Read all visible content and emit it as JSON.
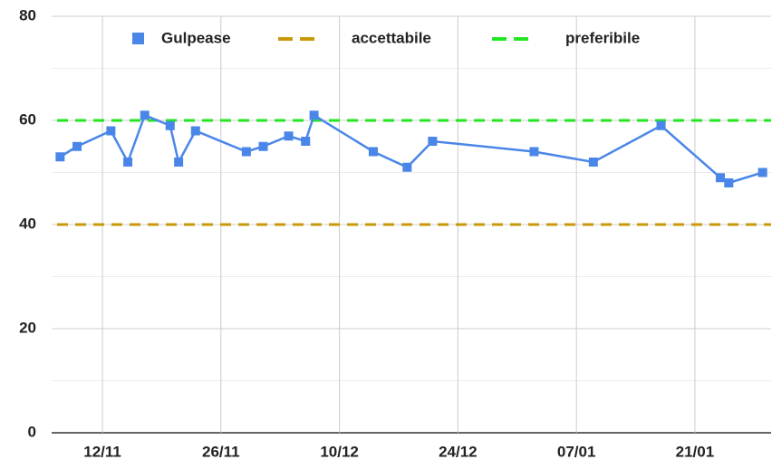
{
  "chart_data": {
    "type": "line",
    "x": [
      "07/11",
      "09/11",
      "13/11",
      "15/11",
      "17/11",
      "20/11",
      "21/11",
      "23/11",
      "29/11",
      "01/12",
      "04/12",
      "06/12",
      "07/12",
      "14/12",
      "18/12",
      "21/12",
      "02/01",
      "09/01",
      "17/01",
      "24/01",
      "25/01",
      "29/01"
    ],
    "series": [
      {
        "name": "Gulpease",
        "color": "#4a86e8",
        "values": [
          53,
          55,
          58,
          52,
          61,
          59,
          52,
          58,
          54,
          55,
          57,
          56,
          61,
          54,
          51,
          56,
          54,
          52,
          59,
          49,
          48,
          50
        ]
      }
    ],
    "reference_lines": [
      {
        "name": "accettabile",
        "color": "#c89a0a",
        "value": 40
      },
      {
        "name": "preferibile",
        "color": "#22e622",
        "value": 60
      }
    ],
    "xlim": [
      "06/11",
      "30/01"
    ],
    "xticks": [
      "12/11",
      "26/11",
      "10/12",
      "24/12",
      "07/01",
      "21/01"
    ],
    "ylim": [
      0,
      80
    ],
    "yticks": [
      0,
      20,
      40,
      60,
      80
    ],
    "yminorticks": [
      10,
      30,
      50,
      70
    ],
    "grid": true,
    "legend": "top"
  }
}
